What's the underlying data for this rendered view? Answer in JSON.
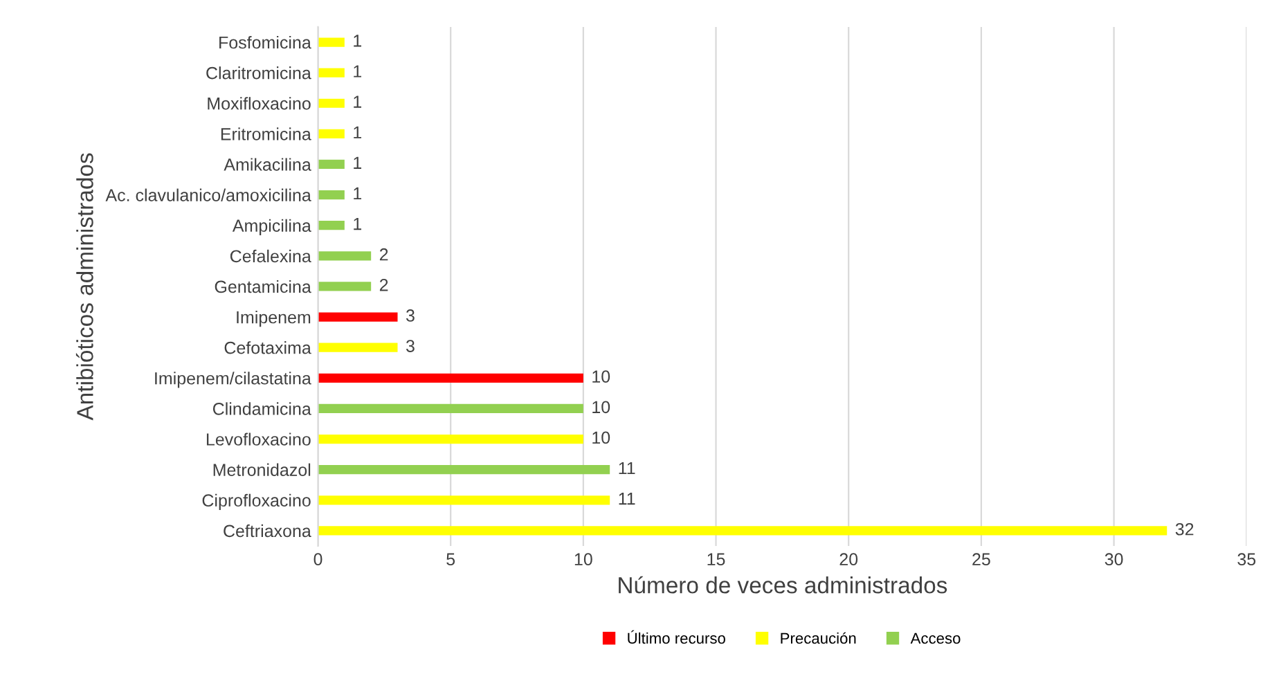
{
  "chart_data": {
    "type": "bar",
    "orientation": "horizontal",
    "xlabel": "Número de veces administrados",
    "ylabel": "Antibióticos administrados",
    "categories": [
      "Fosfomicina",
      "Claritromicina",
      "Moxifloxacino",
      "Eritromicina",
      "Amikacilina",
      "Ac. clavulanico/amoxicilina",
      "Ampicilina",
      "Cefalexina",
      "Gentamicina",
      "Imipenem",
      "Cefotaxima",
      "Imipenem/cilastatina",
      "Clindamicina",
      "Levofloxacino",
      "Metronidazol",
      "Ciprofloxacino",
      "Ceftriaxona"
    ],
    "series": [
      {
        "name": "Último recurso",
        "color": "#ff0000",
        "values": [
          null,
          null,
          null,
          null,
          null,
          null,
          null,
          null,
          null,
          3,
          null,
          10,
          null,
          null,
          null,
          null,
          null
        ]
      },
      {
        "name": "Precaución",
        "color": "#ffff00",
        "values": [
          1,
          1,
          1,
          1,
          null,
          null,
          null,
          null,
          null,
          null,
          3,
          null,
          null,
          10,
          null,
          11,
          32
        ]
      },
      {
        "name": "Acceso",
        "color": "#92d050",
        "values": [
          null,
          null,
          null,
          null,
          1,
          1,
          1,
          2,
          2,
          null,
          null,
          null,
          10,
          null,
          11,
          null,
          null
        ]
      }
    ],
    "xlim": [
      0,
      35
    ],
    "xticks": [
      0,
      5,
      10,
      15,
      20,
      25,
      30,
      35
    ],
    "grid": "x",
    "legend": "bottom",
    "data_labels": true
  }
}
